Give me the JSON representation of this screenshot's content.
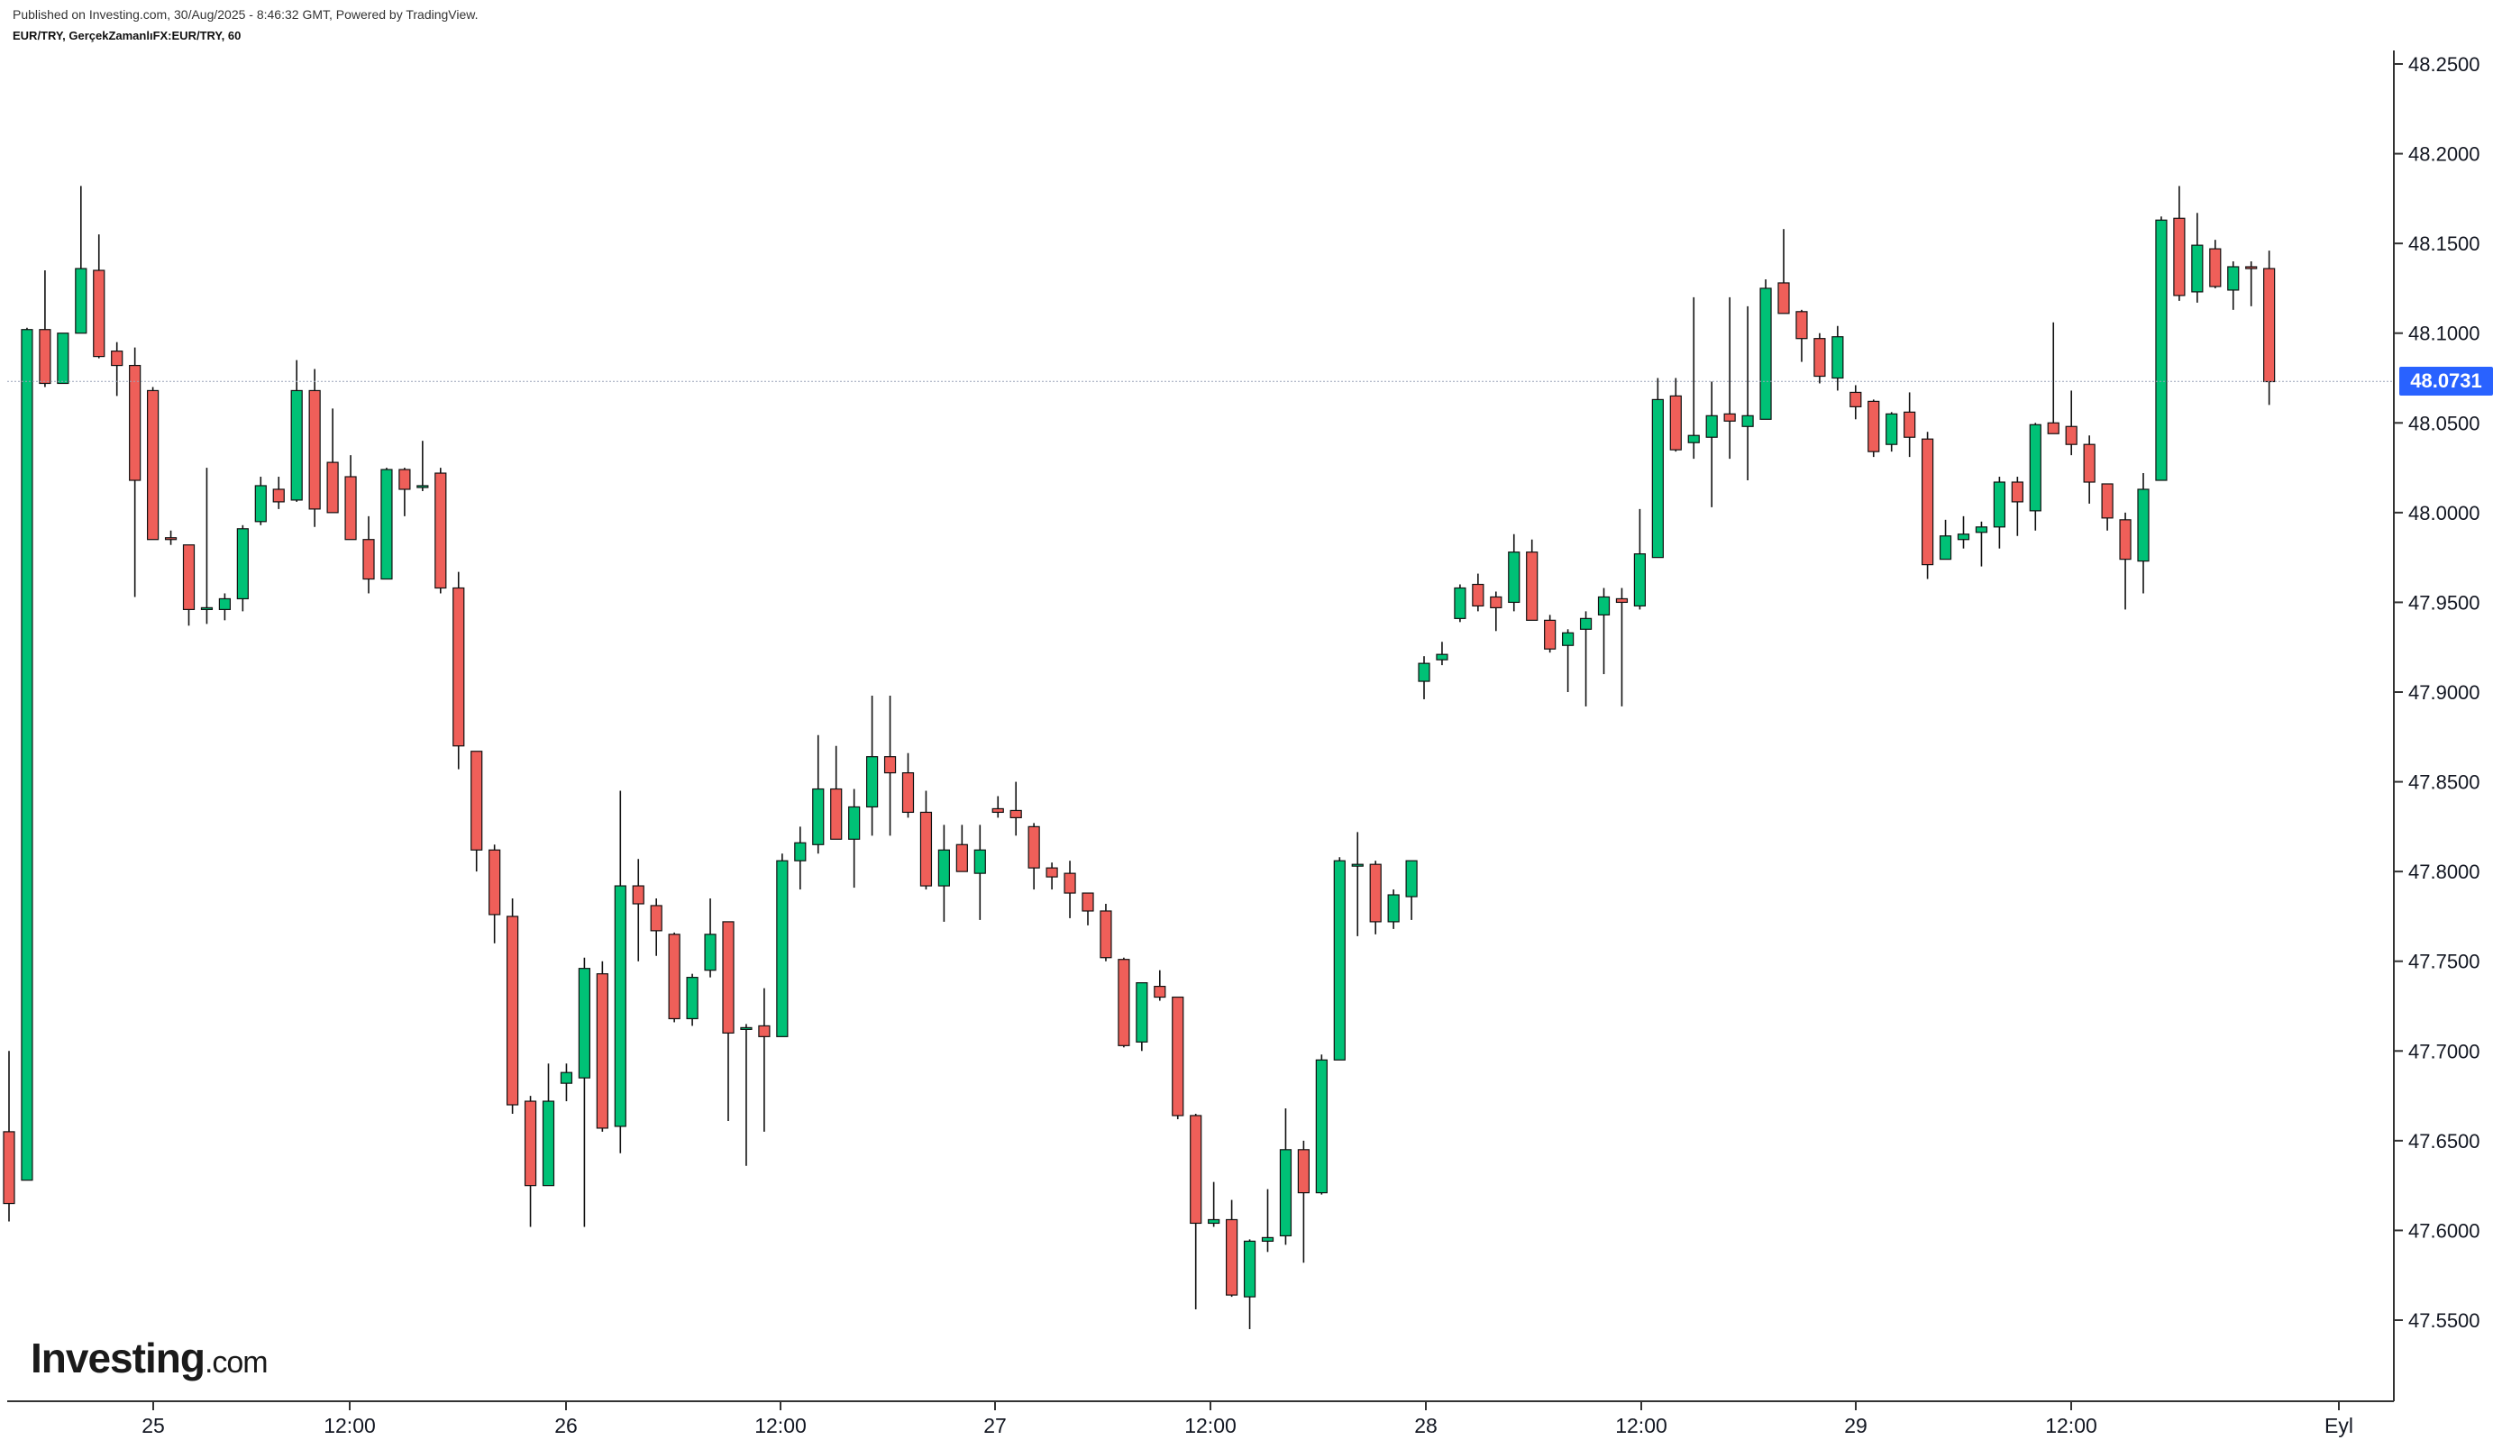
{
  "header": {
    "published": "Published on Investing.com, 30/Aug/2025 - 8:46:32 GMT, Powered by TradingView.",
    "symbol": "EUR/TRY, GerçekZamanlıFX:EUR/TRY, 60"
  },
  "logo": {
    "brand": "Investing",
    "suffix": ".com"
  },
  "colors": {
    "up": "#089981",
    "up_fill": "#00c176",
    "down": "#f23645",
    "down_fill": "#ef5f59",
    "last_price": "#2962ff"
  },
  "chart_data": {
    "type": "candlestick",
    "title": "EUR/TRY, GerçekZamanlıFX:EUR/TRY, 60",
    "ylim": [
      47.5,
      48.26
    ],
    "yticks": [
      "48.2500",
      "48.2000",
      "48.1500",
      "48.1000",
      "48.0500",
      "48.0000",
      "47.9500",
      "47.9000",
      "47.8500",
      "47.8000",
      "47.7500",
      "47.7000",
      "47.6500",
      "47.6000",
      "47.5500"
    ],
    "xticks": [
      "25",
      "12:00",
      "26",
      "12:00",
      "27",
      "12:00",
      "28",
      "12:00",
      "29",
      "12:00",
      "Eyl"
    ],
    "last_price": 48.0731,
    "last_price_label": "48.0731",
    "sessions": [
      {
        "candles": [
          [
            47.655,
            47.7,
            47.605,
            47.615
          ],
          [
            47.628,
            48.103,
            47.628,
            48.102
          ],
          [
            48.102,
            48.135,
            48.07,
            48.072
          ],
          [
            48.072,
            48.1,
            48.072,
            48.1
          ],
          [
            48.1,
            48.182,
            48.1,
            48.136
          ],
          [
            48.135,
            48.155,
            48.086,
            48.087
          ],
          [
            48.09,
            48.095,
            48.065,
            48.082
          ],
          [
            48.082,
            48.092,
            47.953,
            48.018
          ],
          [
            48.068,
            48.07,
            47.985,
            47.985
          ],
          [
            47.986,
            47.99,
            47.982,
            47.985
          ],
          [
            47.982,
            47.982,
            47.937,
            47.946
          ],
          [
            47.946,
            48.025,
            47.938,
            47.947
          ],
          [
            47.946,
            47.955,
            47.94,
            47.952
          ],
          [
            47.952,
            47.993,
            47.945,
            47.991
          ],
          [
            47.995,
            48.02,
            47.993,
            48.015
          ],
          [
            48.013,
            48.02,
            48.002,
            48.006
          ],
          [
            48.007,
            48.085,
            48.006,
            48.068
          ],
          [
            48.068,
            48.08,
            47.992,
            48.002
          ],
          [
            48.028,
            48.058,
            48.0,
            48.0
          ],
          [
            48.02,
            48.032,
            47.988,
            47.985
          ],
          [
            47.985,
            47.998,
            47.955,
            47.963
          ],
          [
            47.963,
            48.025,
            47.963,
            48.024
          ],
          [
            48.024,
            48.025,
            47.998,
            48.013
          ],
          [
            48.015,
            48.04,
            48.012,
            48.015
          ],
          [
            48.022,
            48.025,
            47.955,
            47.958
          ],
          [
            47.958,
            47.967,
            47.857,
            47.87
          ],
          [
            47.867,
            47.867,
            47.8,
            47.812
          ],
          [
            47.812,
            47.815,
            47.76,
            47.776
          ],
          [
            47.775,
            47.785,
            47.665,
            47.67
          ],
          [
            47.672,
            47.675,
            47.602,
            47.625
          ],
          [
            47.625,
            47.693,
            47.625,
            47.672
          ],
          [
            47.682,
            47.693,
            47.672,
            47.688
          ],
          [
            47.685,
            47.752,
            47.602,
            47.746
          ],
          [
            47.743,
            47.75,
            47.655,
            47.657
          ],
          [
            47.658,
            47.845,
            47.643,
            47.792
          ],
          [
            47.792,
            47.807,
            47.75,
            47.782
          ],
          [
            47.781,
            47.785,
            47.753,
            47.767
          ],
          [
            47.765,
            47.766,
            47.716,
            47.718
          ],
          [
            47.718,
            47.743,
            47.714,
            47.741
          ],
          [
            47.745,
            47.785,
            47.741,
            47.765
          ],
          [
            47.772,
            47.772,
            47.661,
            47.71
          ],
          [
            47.712,
            47.715,
            47.636,
            47.713
          ],
          [
            47.714,
            47.735,
            47.655,
            47.708
          ],
          [
            47.708,
            47.81,
            47.708,
            47.806
          ],
          [
            47.806,
            47.825,
            47.79,
            47.816
          ],
          [
            47.815,
            47.876,
            47.81,
            47.846
          ],
          [
            47.846,
            47.87,
            47.821,
            47.818
          ],
          [
            47.818,
            47.846,
            47.791,
            47.836
          ],
          [
            47.836,
            47.898,
            47.82,
            47.864
          ],
          [
            47.864,
            47.898,
            47.82,
            47.855
          ],
          [
            47.855,
            47.866,
            47.83,
            47.833
          ],
          [
            47.833,
            47.845,
            47.79,
            47.792
          ],
          [
            47.792,
            47.826,
            47.772,
            47.812
          ],
          [
            47.815,
            47.826,
            47.8,
            47.8
          ],
          [
            47.799,
            47.826,
            47.773,
            47.812
          ],
          [
            47.835,
            47.842,
            47.83,
            47.833
          ],
          [
            47.834,
            47.85,
            47.82,
            47.83
          ],
          [
            47.825,
            47.827,
            47.79,
            47.802
          ],
          [
            47.802,
            47.805,
            47.79,
            47.797
          ],
          [
            47.799,
            47.806,
            47.774,
            47.788
          ],
          [
            47.788,
            47.788,
            47.77,
            47.778
          ],
          [
            47.778,
            47.782,
            47.75,
            47.752
          ],
          [
            47.751,
            47.752,
            47.702,
            47.703
          ],
          [
            47.705,
            47.738,
            47.7,
            47.738
          ],
          [
            47.736,
            47.745,
            47.728,
            47.73
          ],
          [
            47.73,
            47.73,
            47.662,
            47.664
          ],
          [
            47.664,
            47.665,
            47.556,
            47.604
          ],
          [
            47.604,
            47.627,
            47.602,
            47.606
          ],
          [
            47.606,
            47.617,
            47.563,
            47.564
          ],
          [
            47.563,
            47.595,
            47.545,
            47.594
          ],
          [
            47.594,
            47.623,
            47.588,
            47.596
          ],
          [
            47.597,
            47.668,
            47.592,
            47.645
          ],
          [
            47.645,
            47.65,
            47.582,
            47.621
          ],
          [
            47.621,
            47.698,
            47.62,
            47.695
          ],
          [
            47.695,
            47.808,
            47.695,
            47.806
          ],
          [
            47.804,
            47.822,
            47.764,
            47.804
          ],
          [
            47.804,
            47.806,
            47.765,
            47.772
          ],
          [
            47.772,
            47.79,
            47.768,
            47.787
          ],
          [
            47.786,
            47.806,
            47.773,
            47.806
          ]
        ]
      },
      {
        "candles": [
          [
            47.906,
            47.92,
            47.896,
            47.916
          ],
          [
            47.918,
            47.928,
            47.915,
            47.921
          ],
          [
            47.941,
            47.96,
            47.939,
            47.958
          ],
          [
            47.96,
            47.966,
            47.945,
            47.948
          ],
          [
            47.953,
            47.956,
            47.934,
            47.947
          ],
          [
            47.95,
            47.988,
            47.945,
            47.978
          ],
          [
            47.978,
            47.985,
            47.94,
            47.94
          ],
          [
            47.94,
            47.943,
            47.922,
            47.924
          ],
          [
            47.926,
            47.935,
            47.9,
            47.933
          ],
          [
            47.935,
            47.945,
            47.892,
            47.941
          ],
          [
            47.943,
            47.958,
            47.91,
            47.953
          ],
          [
            47.952,
            47.958,
            47.892,
            47.95
          ],
          [
            47.948,
            48.002,
            47.946,
            47.977
          ],
          [
            47.975,
            48.075,
            47.975,
            48.063
          ],
          [
            48.065,
            48.075,
            48.034,
            48.035
          ],
          [
            48.039,
            48.12,
            48.03,
            48.043
          ],
          [
            48.042,
            48.073,
            48.003,
            48.054
          ],
          [
            48.055,
            48.12,
            48.03,
            48.051
          ],
          [
            48.048,
            48.115,
            48.018,
            48.054
          ],
          [
            48.052,
            48.13,
            48.052,
            48.125
          ],
          [
            48.128,
            48.158,
            48.112,
            48.111
          ],
          [
            48.112,
            48.113,
            48.084,
            48.097
          ],
          [
            48.097,
            48.1,
            48.072,
            48.076
          ],
          [
            48.075,
            48.104,
            48.068,
            48.098
          ],
          [
            48.067,
            48.071,
            48.052,
            48.059
          ],
          [
            48.062,
            48.063,
            48.031,
            48.034
          ],
          [
            48.038,
            48.056,
            48.034,
            48.055
          ],
          [
            48.056,
            48.067,
            48.031,
            48.042
          ],
          [
            48.041,
            48.045,
            47.963,
            47.971
          ],
          [
            47.974,
            47.996,
            47.974,
            47.987
          ],
          [
            47.985,
            47.998,
            47.98,
            47.988
          ],
          [
            47.989,
            47.995,
            47.97,
            47.992
          ],
          [
            47.992,
            48.02,
            47.98,
            48.017
          ],
          [
            48.017,
            48.02,
            47.987,
            48.006
          ],
          [
            48.001,
            48.05,
            47.99,
            48.049
          ],
          [
            48.05,
            48.106,
            48.044,
            48.044
          ],
          [
            48.048,
            48.068,
            48.032,
            48.038
          ],
          [
            48.038,
            48.043,
            48.005,
            48.017
          ],
          [
            48.016,
            48.016,
            47.99,
            47.997
          ],
          [
            47.996,
            48.0,
            47.946,
            47.974
          ],
          [
            47.973,
            48.022,
            47.955,
            48.013
          ],
          [
            48.018,
            48.165,
            48.018,
            48.163
          ],
          [
            48.164,
            48.182,
            48.118,
            48.121
          ],
          [
            48.123,
            48.167,
            48.117,
            48.149
          ],
          [
            48.147,
            48.152,
            48.125,
            48.126
          ],
          [
            48.124,
            48.14,
            48.113,
            48.137
          ],
          [
            48.137,
            48.14,
            48.115,
            48.136
          ],
          [
            48.136,
            48.146,
            48.06,
            48.073
          ]
        ]
      }
    ]
  }
}
